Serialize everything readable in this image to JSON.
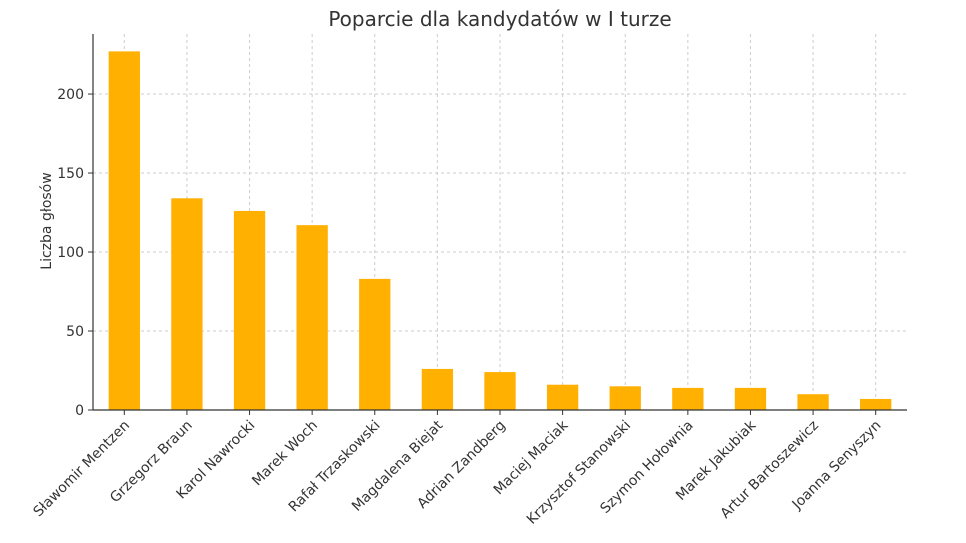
{
  "chart_data": {
    "type": "bar",
    "title": "Poparcie dla kandydatów w I turze",
    "xlabel": "",
    "ylabel": "Liczba głosów",
    "categories": [
      "Sławomir Mentzen",
      "Grzegorz Braun",
      "Karol Nawrocki",
      "Marek Woch",
      "Rafał Trzaskowski",
      "Magdalena Biejat",
      "Adrian Zandberg",
      "Maciej Maciak",
      "Krzysztof Stanowski",
      "Szymon Hołownia",
      "Marek Jakubiak",
      "Artur Bartoszewicz",
      "Joanna Senyszyn"
    ],
    "values": [
      227,
      134,
      126,
      117,
      83,
      26,
      24,
      16,
      15,
      14,
      14,
      10,
      7
    ],
    "ylim": [
      0,
      238
    ],
    "yticks": [
      0,
      50,
      100,
      150,
      200
    ],
    "grid": true,
    "bar_color": "#ffb000"
  }
}
